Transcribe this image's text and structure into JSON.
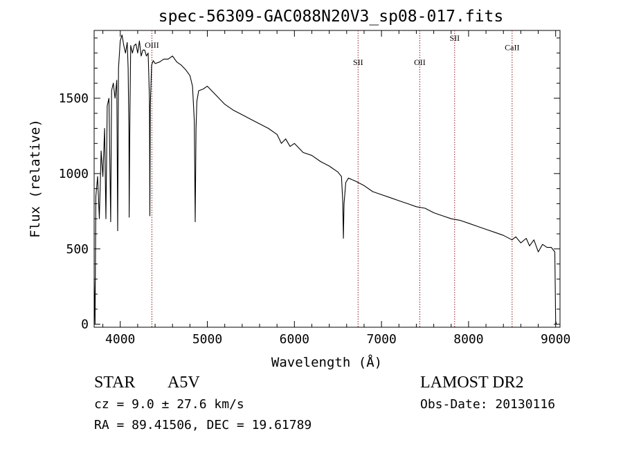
{
  "title": "spec-56309-GAC088N20V3_sp08-017.fits",
  "chart_data": {
    "type": "line",
    "title": "spec-56309-GAC088N20V3_sp08-017.fits",
    "xlabel": "Wavelength (Å)",
    "ylabel": "Flux (relative)",
    "xlim": [
      3700,
      9050
    ],
    "ylim": [
      -20,
      1950
    ],
    "xticks": [
      4000,
      5000,
      6000,
      7000,
      8000,
      9000
    ],
    "yticks": [
      0,
      500,
      1000,
      1500
    ],
    "grid": false,
    "series": [
      {
        "color": "#000000",
        "x": [
          3700,
          3710,
          3720,
          3740,
          3760,
          3780,
          3800,
          3820,
          3835,
          3850,
          3870,
          3890,
          3900,
          3920,
          3940,
          3960,
          3970,
          3980,
          4000,
          4020,
          4040,
          4060,
          4080,
          4090,
          4100,
          4102,
          4110,
          4120,
          4140,
          4160,
          4180,
          4200,
          4220,
          4240,
          4260,
          4280,
          4300,
          4320,
          4335,
          4340,
          4345,
          4360,
          4380,
          4400,
          4450,
          4500,
          4550,
          4600,
          4650,
          4700,
          4750,
          4800,
          4830,
          4850,
          4861,
          4870,
          4880,
          4900,
          4950,
          5000,
          5050,
          5100,
          5150,
          5200,
          5300,
          5400,
          5500,
          5600,
          5700,
          5800,
          5850,
          5900,
          5950,
          6000,
          6100,
          6200,
          6300,
          6400,
          6500,
          6540,
          6555,
          6563,
          6570,
          6590,
          6620,
          6700,
          6800,
          6900,
          7000,
          7100,
          7200,
          7300,
          7400,
          7500,
          7600,
          7700,
          7800,
          7900,
          8000,
          8100,
          8200,
          8300,
          8400,
          8498,
          8542,
          8600,
          8662,
          8700,
          8750,
          8800,
          8850,
          8900,
          8950,
          8990,
          9000,
          9010
        ],
        "values": [
          300,
          0,
          850,
          980,
          700,
          1150,
          980,
          1300,
          700,
          1450,
          1500,
          680,
          1550,
          1600,
          1500,
          1620,
          620,
          1700,
          1880,
          1920,
          1850,
          1800,
          1870,
          1700,
          1250,
          710,
          1350,
          1850,
          1800,
          1850,
          1860,
          1800,
          1880,
          1780,
          1820,
          1820,
          1780,
          1800,
          1500,
          720,
          1450,
          1720,
          1750,
          1730,
          1740,
          1760,
          1760,
          1780,
          1740,
          1720,
          1690,
          1650,
          1580,
          1350,
          680,
          1300,
          1480,
          1550,
          1560,
          1580,
          1550,
          1520,
          1490,
          1460,
          1420,
          1390,
          1360,
          1330,
          1300,
          1260,
          1200,
          1230,
          1180,
          1200,
          1140,
          1120,
          1080,
          1050,
          1010,
          980,
          820,
          570,
          800,
          940,
          970,
          950,
          920,
          880,
          860,
          840,
          820,
          800,
          780,
          770,
          740,
          720,
          700,
          690,
          670,
          650,
          630,
          610,
          590,
          560,
          580,
          540,
          570,
          520,
          560,
          480,
          530,
          510,
          510,
          480,
          20,
          0
        ]
      }
    ],
    "annotations": [
      {
        "label": "OIII",
        "x": 4363,
        "label_y": 1835
      },
      {
        "label": "SII",
        "x": 6731,
        "label_y": 1720
      },
      {
        "label": "OII",
        "x": 7440,
        "label_y": 1720
      },
      {
        "label": "SII",
        "x": 7840,
        "label_y": 1880
      },
      {
        "label": "CaII",
        "x": 8500,
        "label_y": 1820
      }
    ],
    "annotation_color": "#8b1a1a"
  },
  "info": {
    "object_type": "STAR",
    "subclass": "A5V",
    "survey": "LAMOST DR2",
    "redshift": "cz = 9.0 ± 27.6 km/s",
    "obs_date": "Obs-Date: 20130116",
    "coords": "RA =  89.41506, DEC =  19.61789"
  }
}
